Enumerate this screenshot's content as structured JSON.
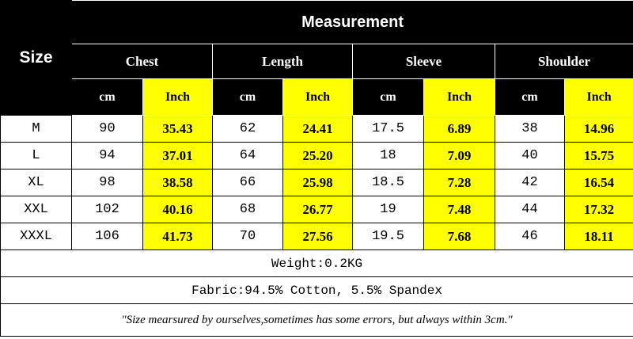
{
  "table": {
    "size_header": "Size",
    "title": "Measurement",
    "groups": [
      "Chest",
      "Length",
      "Sleeve",
      "Shoulder"
    ],
    "units": [
      "cm",
      "Inch",
      "cm",
      "Inch",
      "cm",
      "Inch",
      "cm",
      "Inch"
    ],
    "rows": [
      [
        "M",
        "90",
        "35.43",
        "62",
        "24.41",
        "17.5",
        "6.89",
        "38",
        "14.96"
      ],
      [
        "L",
        "94",
        "37.01",
        "64",
        "25.20",
        "18",
        "7.09",
        "40",
        "15.75"
      ],
      [
        "XL",
        "98",
        "38.58",
        "66",
        "25.98",
        "18.5",
        "7.28",
        "42",
        "16.54"
      ],
      [
        "XXL",
        "102",
        "40.16",
        "68",
        "26.77",
        "19",
        "7.48",
        "44",
        "17.32"
      ],
      [
        "XXXL",
        "106",
        "41.73",
        "70",
        "27.56",
        "19.5",
        "7.68",
        "46",
        "18.11"
      ]
    ],
    "weight": "Weight:0.2KG",
    "fabric": "Fabric:94.5% Cotton, 5.5% Spandex",
    "note": "\"Size mearsured by ourselves,sometimes has some errors, but always within 3cm.\""
  }
}
